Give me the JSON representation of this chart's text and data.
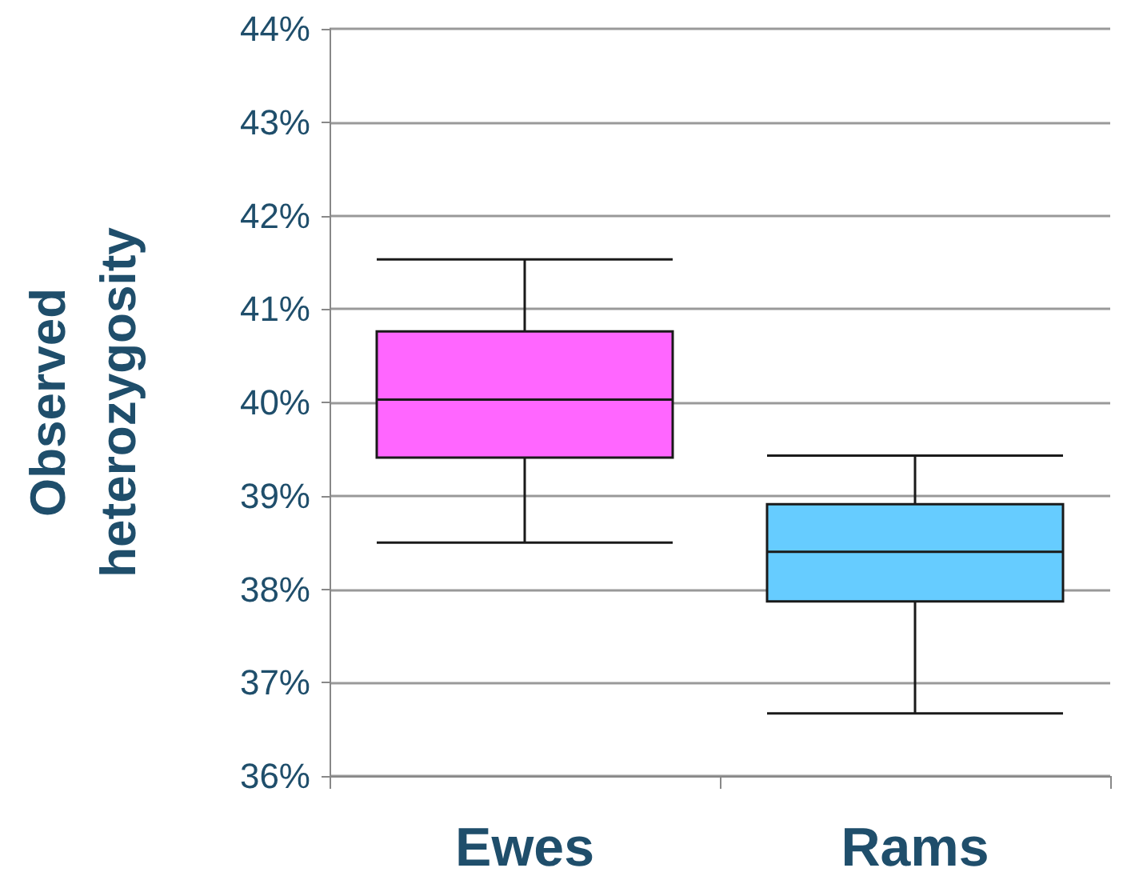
{
  "chart_data": {
    "type": "box",
    "ylabel": "Observed heterozygosity",
    "categories": [
      "Ewes",
      "Rams"
    ],
    "boxes": [
      {
        "low": 38.5,
        "q1": 39.41,
        "median": 40.03,
        "q3": 40.76,
        "high": 41.53
      },
      {
        "low": 36.67,
        "q1": 37.87,
        "median": 38.4,
        "q3": 38.91,
        "high": 39.43
      }
    ],
    "colors": [
      "#ff66ff",
      "#66ccff"
    ],
    "ylim": [
      36,
      44
    ],
    "yticks": [
      {
        "value": 36,
        "label": "36%"
      },
      {
        "value": 37,
        "label": "37%"
      },
      {
        "value": 38,
        "label": "38%"
      },
      {
        "value": 39,
        "label": "39%"
      },
      {
        "value": 40,
        "label": "40%"
      },
      {
        "value": 41,
        "label": "41%"
      },
      {
        "value": 42,
        "label": "42%"
      },
      {
        "value": 43,
        "label": "43%"
      },
      {
        "value": 44,
        "label": "44%"
      }
    ],
    "grid": "y"
  }
}
